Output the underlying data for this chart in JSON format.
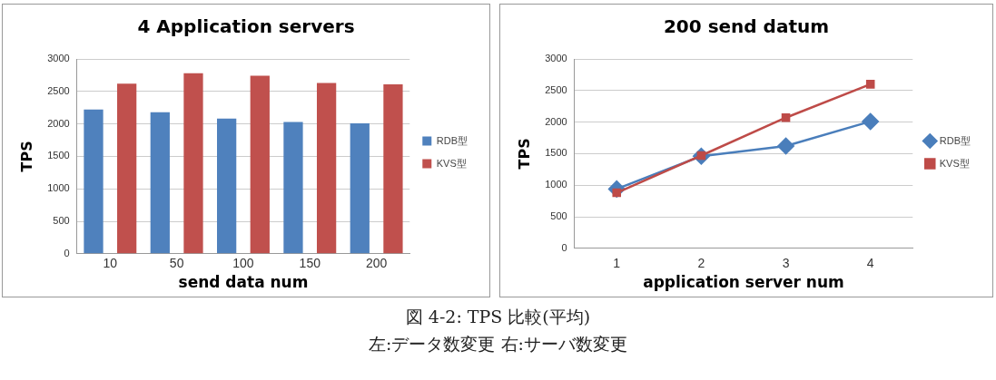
{
  "chart_data": [
    {
      "type": "bar",
      "title": "4 Application servers",
      "xlabel": "send data num",
      "ylabel": "TPS",
      "categories": [
        "10",
        "50",
        "100",
        "150",
        "200"
      ],
      "series": [
        {
          "name": "RDB型",
          "color": "#4f81bd",
          "values": [
            2220,
            2180,
            2080,
            2030,
            2010
          ]
        },
        {
          "name": "KVS型",
          "color": "#c0504d",
          "values": [
            2620,
            2780,
            2740,
            2630,
            2610
          ]
        }
      ],
      "ylim": [
        0,
        3000
      ],
      "yticks": [
        0,
        500,
        1000,
        1500,
        2000,
        2500,
        3000
      ],
      "grid": "y",
      "legend": "right",
      "annotations": [
        "図 4-2: TPS 比較(平均)",
        "左:データ数変更  右:サーバ数変更"
      ]
    },
    {
      "type": "line",
      "title": "200 send datum",
      "xlabel": "application server num",
      "ylabel": "TPS",
      "categories": [
        "1",
        "2",
        "3",
        "4"
      ],
      "series": [
        {
          "name": "RDB型",
          "color": "#4a7ebb",
          "marker": "diamond",
          "values": [
            940,
            1460,
            1620,
            2010
          ]
        },
        {
          "name": "KVS型",
          "color": "#be4b48",
          "marker": "square",
          "values": [
            880,
            1470,
            2070,
            2600
          ]
        }
      ],
      "ylim": [
        0,
        3000
      ],
      "yticks": [
        0,
        500,
        1000,
        1500,
        2000,
        2500,
        3000
      ],
      "grid": "y",
      "legend": "right",
      "line_style": "solid"
    }
  ]
}
